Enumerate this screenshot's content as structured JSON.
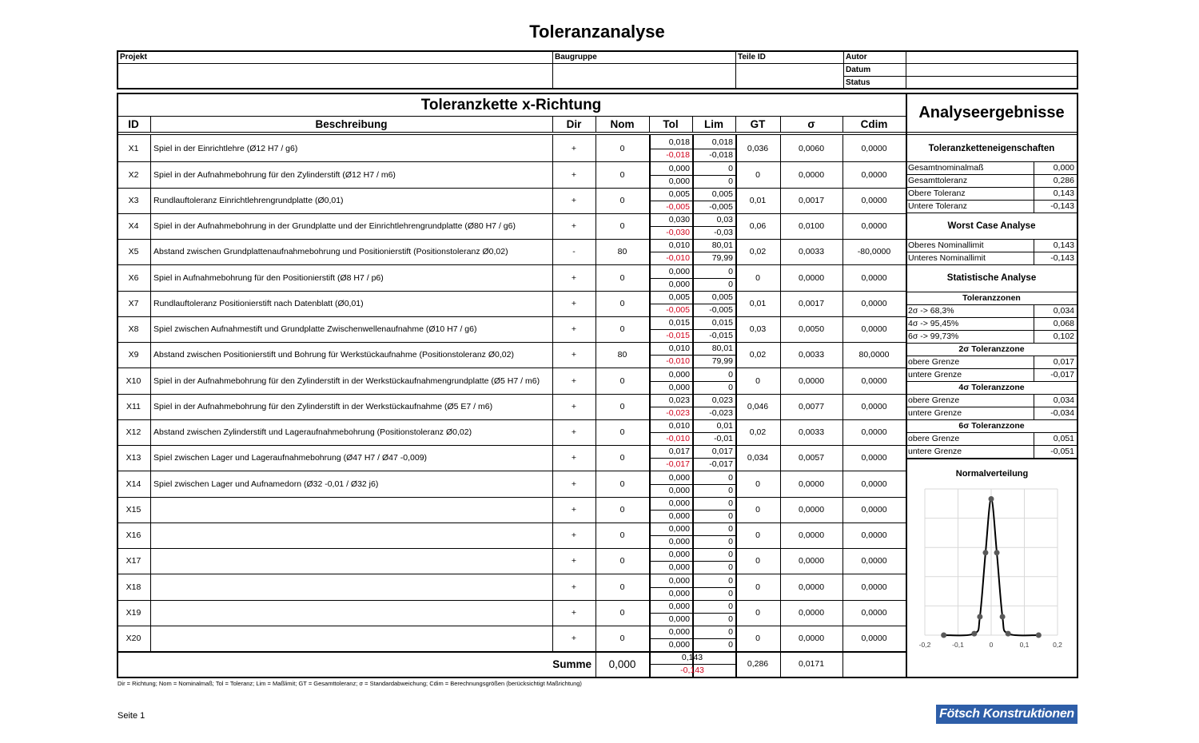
{
  "title": "Toleranzanalyse",
  "header": {
    "projekt_label": "Projekt",
    "baugruppe_label": "Baugruppe",
    "teile_id_label": "Teile ID",
    "autor_label": "Autor",
    "datum_label": "Datum",
    "status_label": "Status"
  },
  "chain": {
    "title": "Toleranzkette x-Richtung",
    "columns": [
      "ID",
      "Beschreibung",
      "Dir",
      "Nom",
      "Tol",
      "Lim",
      "GT",
      "σ",
      "Cdim"
    ],
    "rows": [
      {
        "id": "X1",
        "desc": "Spiel in der Einrichtlehre (Ø12 H7 / g6)",
        "dir": "+",
        "nom": "0",
        "tol_up": "0,018",
        "tol_lo": "-0,018",
        "lim_up": "0,018",
        "lim_lo": "-0,018",
        "gt": "0,036",
        "sigma": "0,0060",
        "cdim": "0,0000"
      },
      {
        "id": "X2",
        "desc": "Spiel in der Aufnahmebohrung für den Zylinderstift (Ø12 H7 / m6)",
        "dir": "+",
        "nom": "0",
        "tol_up": "0,000",
        "tol_lo": "0,000",
        "lim_up": "0",
        "lim_lo": "0",
        "gt": "0",
        "sigma": "0,0000",
        "cdim": "0,0000"
      },
      {
        "id": "X3",
        "desc": "Rundlauftoleranz Einrichtlehrengrundplatte (Ø0,01)",
        "dir": "+",
        "nom": "0",
        "tol_up": "0,005",
        "tol_lo": "-0,005",
        "lim_up": "0,005",
        "lim_lo": "-0,005",
        "gt": "0,01",
        "sigma": "0,0017",
        "cdim": "0,0000"
      },
      {
        "id": "X4",
        "desc": "Spiel in der Aufnahmebohrung in der Grundplatte und der Einrichtlehrengrundplatte (Ø80 H7 / g6)",
        "dir": "+",
        "nom": "0",
        "tol_up": "0,030",
        "tol_lo": "-0,030",
        "lim_up": "0,03",
        "lim_lo": "-0,03",
        "gt": "0,06",
        "sigma": "0,0100",
        "cdim": "0,0000"
      },
      {
        "id": "X5",
        "desc": "Abstand zwischen Grundplattenaufnahmebohrung und Positionierstift (Positionstoleranz Ø0,02)",
        "dir": "-",
        "nom": "80",
        "tol_up": "0,010",
        "tol_lo": "-0,010",
        "lim_up": "80,01",
        "lim_lo": "79,99",
        "gt": "0,02",
        "sigma": "0,0033",
        "cdim": "-80,0000"
      },
      {
        "id": "X6",
        "desc": "Spiel in Aufnahmebohrung für den Positionierstift (Ø8 H7 / p6)",
        "dir": "+",
        "nom": "0",
        "tol_up": "0,000",
        "tol_lo": "0,000",
        "lim_up": "0",
        "lim_lo": "0",
        "gt": "0",
        "sigma": "0,0000",
        "cdim": "0,0000"
      },
      {
        "id": "X7",
        "desc": "Rundlauftoleranz Positionierstift nach Datenblatt (Ø0,01)",
        "dir": "+",
        "nom": "0",
        "tol_up": "0,005",
        "tol_lo": "-0,005",
        "lim_up": "0,005",
        "lim_lo": "-0,005",
        "gt": "0,01",
        "sigma": "0,0017",
        "cdim": "0,0000"
      },
      {
        "id": "X8",
        "desc": "Spiel zwischen Aufnahmestift und Grundplatte Zwischenwellenaufnahme (Ø10 H7 / g6)",
        "dir": "+",
        "nom": "0",
        "tol_up": "0,015",
        "tol_lo": "-0,015",
        "lim_up": "0,015",
        "lim_lo": "-0,015",
        "gt": "0,03",
        "sigma": "0,0050",
        "cdim": "0,0000"
      },
      {
        "id": "X9",
        "desc": "Abstand zwischen Positionierstift und Bohrung für Werkstückaufnahme (Positionstoleranz Ø0,02)",
        "dir": "+",
        "nom": "80",
        "tol_up": "0,010",
        "tol_lo": "-0,010",
        "lim_up": "80,01",
        "lim_lo": "79,99",
        "gt": "0,02",
        "sigma": "0,0033",
        "cdim": "80,0000"
      },
      {
        "id": "X10",
        "desc": "Spiel in der Aufnahmebohrung für den Zylinderstift in der Werkstückaufnahmengrundplatte (Ø5 H7 / m6)",
        "dir": "+",
        "nom": "0",
        "tol_up": "0,000",
        "tol_lo": "0,000",
        "lim_up": "0",
        "lim_lo": "0",
        "gt": "0",
        "sigma": "0,0000",
        "cdim": "0,0000"
      },
      {
        "id": "X11",
        "desc": "Spiel in der Aufnahmebohrung für den Zylinderstift in der Werkstückaufnahme (Ø5 E7 / m6)",
        "dir": "+",
        "nom": "0",
        "tol_up": "0,023",
        "tol_lo": "-0,023",
        "lim_up": "0,023",
        "lim_lo": "-0,023",
        "gt": "0,046",
        "sigma": "0,0077",
        "cdim": "0,0000"
      },
      {
        "id": "X12",
        "desc": "Abstand zwischen Zylinderstift und Lageraufnahmebohrung (Positionstoleranz Ø0,02)",
        "dir": "+",
        "nom": "0",
        "tol_up": "0,010",
        "tol_lo": "-0,010",
        "lim_up": "0,01",
        "lim_lo": "-0,01",
        "gt": "0,02",
        "sigma": "0,0033",
        "cdim": "0,0000"
      },
      {
        "id": "X13",
        "desc": "Spiel zwischen Lager und Lageraufnahmebohrung (Ø47 H7 / Ø47 -0,009)",
        "dir": "+",
        "nom": "0",
        "tol_up": "0,017",
        "tol_lo": "-0,017",
        "lim_up": "0,017",
        "lim_lo": "-0,017",
        "gt": "0,034",
        "sigma": "0,0057",
        "cdim": "0,0000"
      },
      {
        "id": "X14",
        "desc": "Spiel zwischen Lager und Aufnamedorn (Ø32 -0,01 / Ø32 j6)",
        "dir": "+",
        "nom": "0",
        "tol_up": "0,000",
        "tol_lo": "0,000",
        "lim_up": "0",
        "lim_lo": "0",
        "gt": "0",
        "sigma": "0,0000",
        "cdim": "0,0000"
      },
      {
        "id": "X15",
        "desc": "",
        "dir": "+",
        "nom": "0",
        "tol_up": "0,000",
        "tol_lo": "0,000",
        "lim_up": "0",
        "lim_lo": "0",
        "gt": "0",
        "sigma": "0,0000",
        "cdim": "0,0000"
      },
      {
        "id": "X16",
        "desc": "",
        "dir": "+",
        "nom": "0",
        "tol_up": "0,000",
        "tol_lo": "0,000",
        "lim_up": "0",
        "lim_lo": "0",
        "gt": "0",
        "sigma": "0,0000",
        "cdim": "0,0000"
      },
      {
        "id": "X17",
        "desc": "",
        "dir": "+",
        "nom": "0",
        "tol_up": "0,000",
        "tol_lo": "0,000",
        "lim_up": "0",
        "lim_lo": "0",
        "gt": "0",
        "sigma": "0,0000",
        "cdim": "0,0000"
      },
      {
        "id": "X18",
        "desc": "",
        "dir": "+",
        "nom": "0",
        "tol_up": "0,000",
        "tol_lo": "0,000",
        "lim_up": "0",
        "lim_lo": "0",
        "gt": "0",
        "sigma": "0,0000",
        "cdim": "0,0000"
      },
      {
        "id": "X19",
        "desc": "",
        "dir": "+",
        "nom": "0",
        "tol_up": "0,000",
        "tol_lo": "0,000",
        "lim_up": "0",
        "lim_lo": "0",
        "gt": "0",
        "sigma": "0,0000",
        "cdim": "0,0000"
      },
      {
        "id": "X20",
        "desc": "",
        "dir": "+",
        "nom": "0",
        "tol_up": "0,000",
        "tol_lo": "0,000",
        "lim_up": "0",
        "lim_lo": "0",
        "gt": "0",
        "sigma": "0,0000",
        "cdim": "0,0000"
      }
    ],
    "sum": {
      "label": "Summe",
      "nom": "0,000",
      "tol_up": "0,143",
      "tol_lo": "-0,143",
      "gt": "0,286",
      "sigma": "0,0171"
    }
  },
  "results": {
    "title": "Analyseergebnisse",
    "props_title": "Toleranzketteneigenschaften",
    "props": [
      {
        "label": "Gesamtnominalmaß",
        "value": "0,000"
      },
      {
        "label": "Gesamttoleranz",
        "value": "0,286"
      },
      {
        "label": "Obere Toleranz",
        "value": "0,143"
      },
      {
        "label": "Untere Toleranz",
        "value": "-0,143"
      }
    ],
    "worst_title": "Worst Case Analyse",
    "worst": [
      {
        "label": "Oberes Nominallimit",
        "value": "0,143"
      },
      {
        "label": "Unteres Nominallimit",
        "value": "-0,143"
      }
    ],
    "stat_title": "Statistische Analyse",
    "zones_title": "Toleranzzonen",
    "zones": [
      {
        "label": "2σ -> 68,3%",
        "value": "0,034"
      },
      {
        "label": "4σ -> 95,45%",
        "value": "0,068"
      },
      {
        "label": "6σ -> 99,73%",
        "value": "0,102"
      }
    ],
    "z2_title": "2σ Toleranzzone",
    "z2": [
      {
        "label": "obere Grenze",
        "value": "0,017"
      },
      {
        "label": "untere Grenze",
        "value": "-0,017"
      }
    ],
    "z4_title": "4σ Toleranzzone",
    "z4": [
      {
        "label": "obere Grenze",
        "value": "0,034"
      },
      {
        "label": "untere Grenze",
        "value": "-0,034"
      }
    ],
    "z6_title": "6σ Toleranzzone",
    "z6": [
      {
        "label": "obere Grenze",
        "value": "0,051"
      },
      {
        "label": "untere Grenze",
        "value": "-0,051"
      }
    ]
  },
  "chart_data": {
    "type": "scatter",
    "title": "Normalverteilung",
    "smooth_line": true,
    "x": [
      -0.143,
      -0.051,
      -0.034,
      -0.017,
      0,
      0.017,
      0.034,
      0.051,
      0.143
    ],
    "y": [
      0.0,
      0.26,
      3.15,
      14.1,
      23.3,
      14.1,
      3.15,
      0.26,
      0.0
    ],
    "xlim": [
      -0.2,
      0.2
    ],
    "ylim": [
      0,
      25
    ],
    "xticks": [
      "-0,2",
      "-0,1",
      "0",
      "0,1",
      "0,2"
    ],
    "grid": true,
    "line_color": "#000000",
    "marker_color": "#595959"
  },
  "footnote": "Dir = Richtung; Nom = Nominalmaß; Tol = Toleranz; Lim = Maßlimit; GT = Gesamttoleranz; σ = Standardabweichung; Cdim = Berechnungsgrößen (berücksichtigt Maßrichtung)",
  "page_label": "Seite 1",
  "logo_text": "Fötsch Konstruktionen",
  "colors": {
    "negative": "#d0021b",
    "logo_bg": "#2e5ea8",
    "logo_text": "#ffffff"
  }
}
